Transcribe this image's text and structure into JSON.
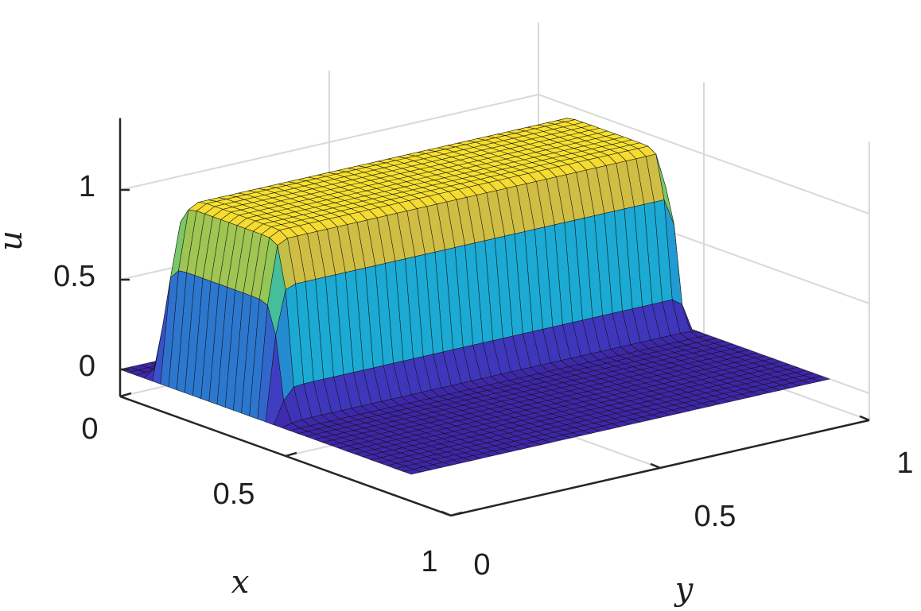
{
  "chart_data": {
    "type": "surface",
    "title": "",
    "xlabel": "x",
    "ylabel": "y",
    "zlabel": "u",
    "xlim": [
      0,
      1
    ],
    "ylim": [
      0,
      1
    ],
    "zlim": [
      -0.15,
      1.4
    ],
    "xticks": [
      {
        "value": 0,
        "label": "0"
      },
      {
        "value": 0.5,
        "label": "0.5"
      },
      {
        "value": 1,
        "label": "1"
      }
    ],
    "yticks": [
      {
        "value": 0,
        "label": "0"
      },
      {
        "value": 0.5,
        "label": "0.5"
      },
      {
        "value": 1,
        "label": "1"
      }
    ],
    "zticks": [
      {
        "value": 0,
        "label": "0"
      },
      {
        "value": 0.5,
        "label": "0.5"
      },
      {
        "value": 1,
        "label": "1"
      }
    ],
    "grid": true,
    "colormap": "parula",
    "plateau_height": 1.0,
    "plateau_x_range": [
      0.1,
      0.45
    ],
    "base_height": 0.0,
    "colors": {
      "low": "#3f43c9",
      "mid": "#16b6c7",
      "high": "#f7e12f",
      "edge": "#111111",
      "axis": "#262626",
      "grid": "#d9d9d9"
    }
  }
}
